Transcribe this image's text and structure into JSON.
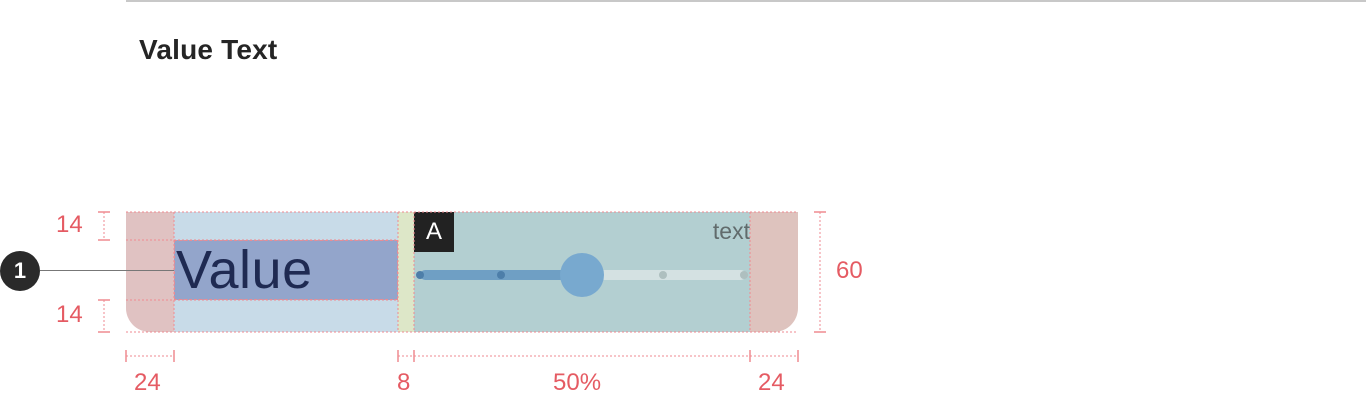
{
  "section": {
    "title": "Value Text"
  },
  "component": {
    "value_text": "Value",
    "badge": "A",
    "unit_text": "text",
    "slider": {
      "level_fraction": 0.5,
      "tick_count": 5
    }
  },
  "callout": {
    "number": "1"
  },
  "dimensions": {
    "top_padding": "14",
    "bottom_padding": "14",
    "height": "60",
    "left_padding": "24",
    "gap": "8",
    "slider_width": "50%",
    "right_padding": "24"
  },
  "colors": {
    "measure_red": "#e55b63",
    "slider_fill": "#6f9fc4",
    "slider_thumb": "#78a9cf",
    "value_highlight": "#93a5cb"
  }
}
